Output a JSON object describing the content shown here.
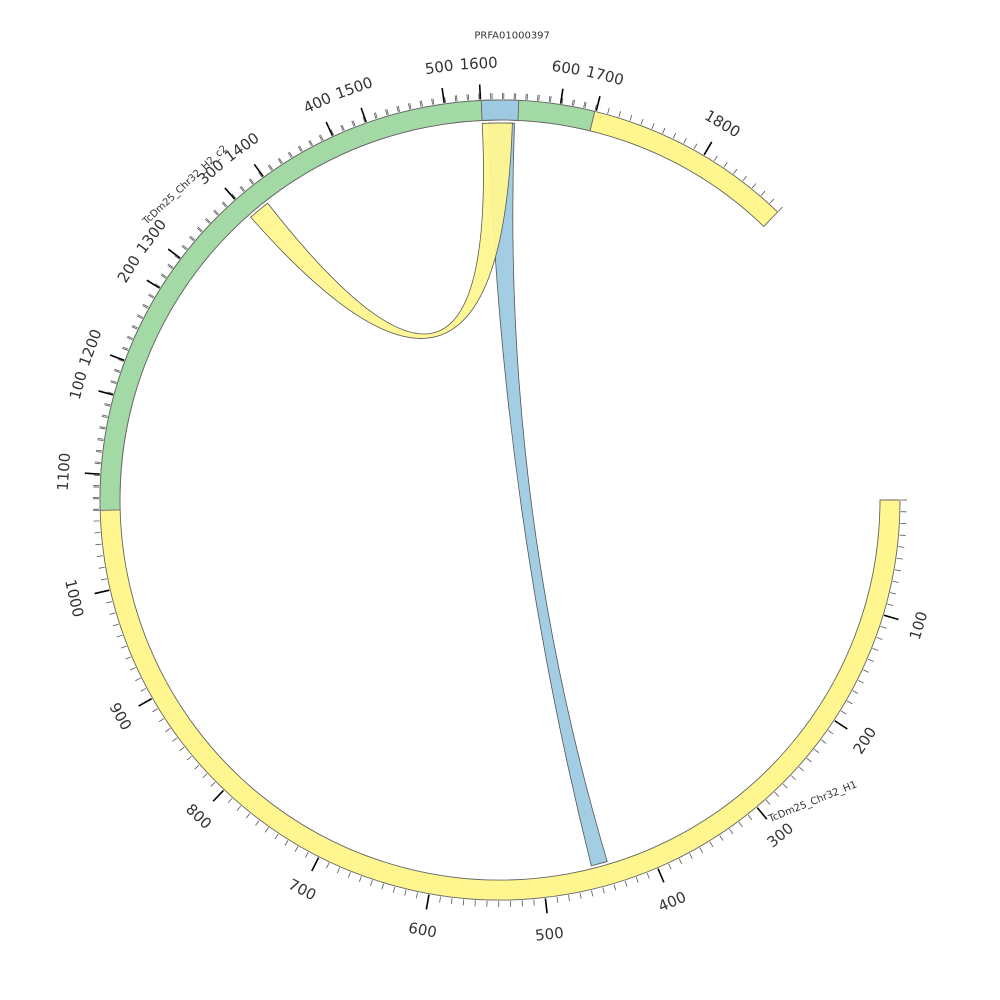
{
  "diagram": {
    "type": "circos",
    "segments": [
      {
        "id": "h1",
        "name": "TcDm25_Chr32_H1",
        "length": 1880,
        "color": "#fff68f",
        "tick_major": 100,
        "tick_minor": 10
      },
      {
        "id": "h2",
        "name": "TcDm25_Chr32_H2_c2",
        "length": 630,
        "color": "#a3d9a5",
        "tick_major": 100,
        "tick_minor": 10
      },
      {
        "id": "prfa",
        "name": "PRFA01000397",
        "length": 33,
        "color": "#9ecae1",
        "tick_major": 0,
        "tick_minor": 0
      }
    ],
    "links": [
      {
        "from": {
          "segment": "prfa",
          "start": 6,
          "end": 30
        },
        "to": {
          "segment": "h1",
          "start": 440,
          "end": 455
        },
        "color": "#9ecae1"
      },
      {
        "from": {
          "segment": "prfa",
          "start": 0,
          "end": 28
        },
        "to": {
          "segment": "h2",
          "start": 300,
          "end": 320
        },
        "color": "#fff68f"
      }
    ]
  }
}
